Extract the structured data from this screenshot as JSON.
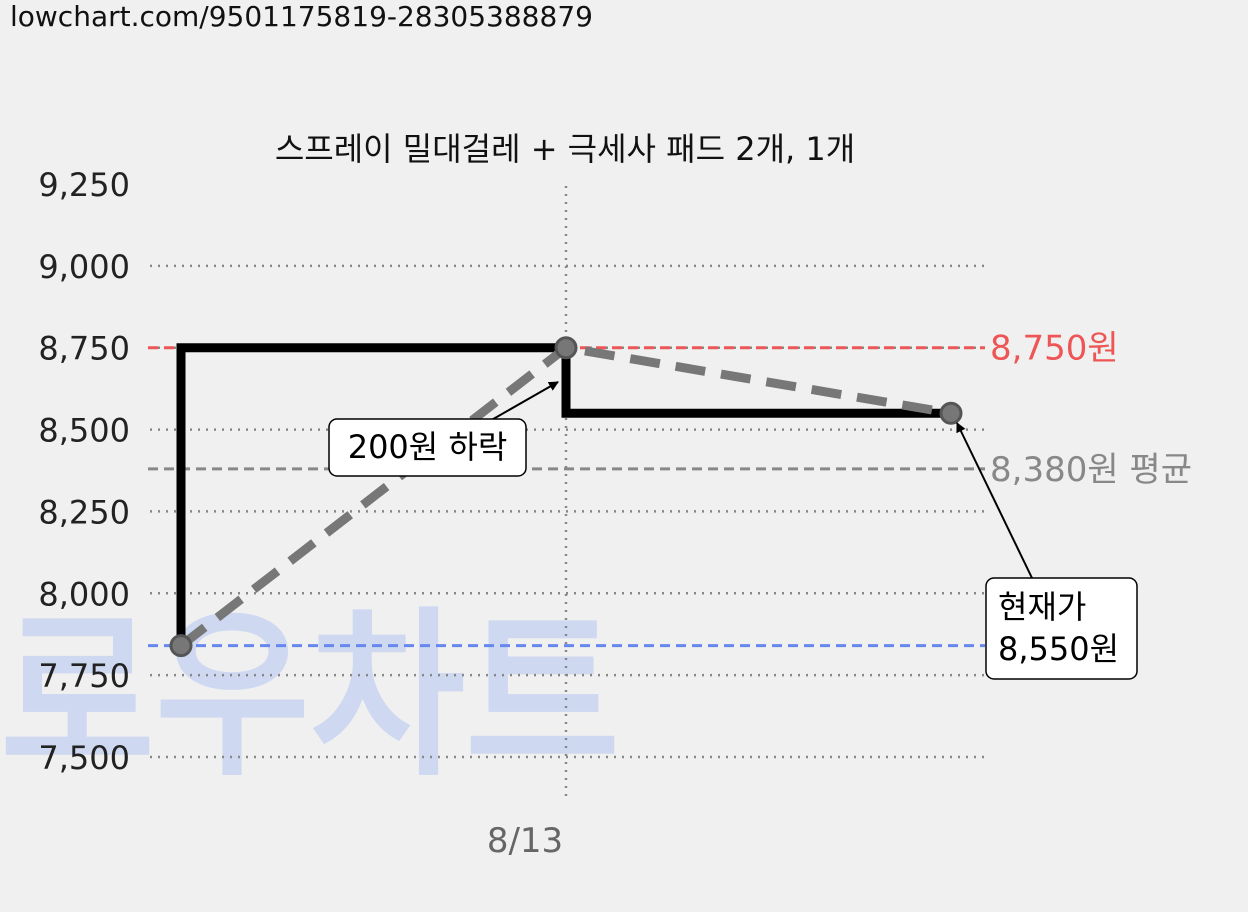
{
  "url_text": "lowchart.com/9501175819-28305388879",
  "watermark": "로우차트",
  "chart_data": {
    "type": "line",
    "title": "스프레이 밀대걸레 + 극세사 패드 2개, 1개",
    "xlabel": "",
    "ylabel": "",
    "x_tick_labels": [
      "8/13"
    ],
    "y_ticks": [
      7500,
      7750,
      8000,
      8250,
      8500,
      8750,
      9000,
      9250
    ],
    "y_tick_labels": [
      "7,500",
      "7,750",
      "8,000",
      "8,250",
      "8,500",
      "8,750",
      "9,000",
      "9,250"
    ],
    "ylim": [
      7500,
      9250
    ],
    "grid": true,
    "series": [
      {
        "style": "step-solid-black",
        "points": [
          {
            "t": 0,
            "y": 7840
          },
          {
            "t": 0,
            "y": 8750
          },
          {
            "t": 1,
            "y": 8750
          },
          {
            "t": 1,
            "y": 8550
          },
          {
            "t": 2,
            "y": 8550
          }
        ]
      },
      {
        "style": "dashed-gray",
        "points": [
          {
            "t": 0,
            "y": 7840
          },
          {
            "t": 1,
            "y": 8750
          },
          {
            "t": 2,
            "y": 8550
          }
        ]
      }
    ],
    "markers": [
      {
        "t": 0,
        "y": 7840
      },
      {
        "t": 1,
        "y": 8750
      },
      {
        "t": 2,
        "y": 8550
      }
    ],
    "reference_lines": [
      {
        "name": "max",
        "value": 8750,
        "label": "8,750원",
        "color": "#ee5555"
      },
      {
        "name": "avg",
        "value": 8380,
        "label": "8,380원 평균",
        "color": "#888888"
      },
      {
        "name": "min",
        "value": 7840,
        "label": "",
        "color": "#6688ee"
      }
    ],
    "annotations": [
      {
        "name": "drop",
        "text": "200원 하락",
        "target_t": 1,
        "target_y": 8750
      },
      {
        "name": "current",
        "lines": [
          "현재가",
          "8,550원"
        ],
        "target_t": 2,
        "target_y": 8550
      }
    ]
  }
}
